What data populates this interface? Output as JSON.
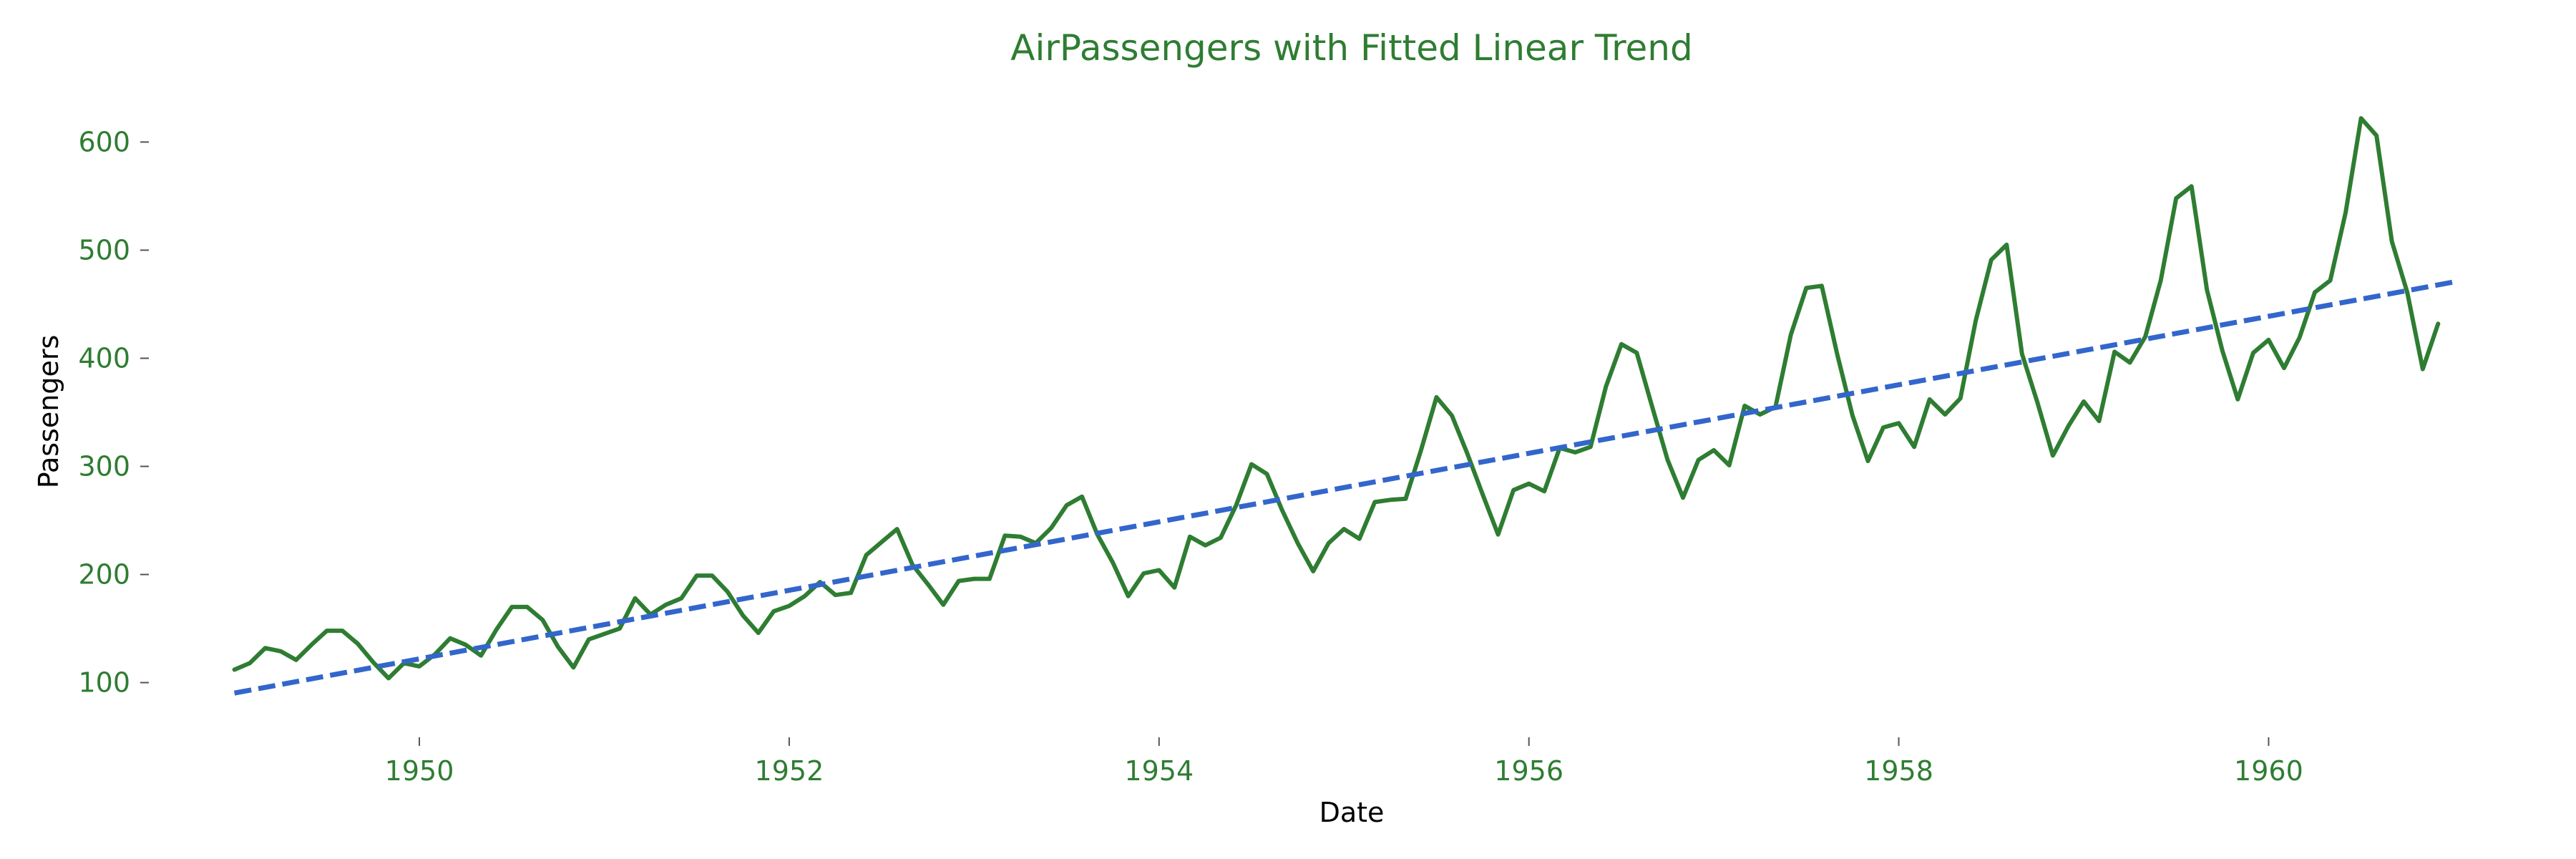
{
  "chart_data": {
    "type": "line",
    "title": "AirPassengers with Fitted Linear Trend",
    "xlabel": "Date",
    "ylabel": "Passengers",
    "xlim": [
      "1948-10-01",
      "1961-05-01"
    ],
    "ylim": [
      60,
      640
    ],
    "x_ticks": [
      "1950",
      "1952",
      "1954",
      "1956",
      "1958",
      "1960"
    ],
    "y_ticks": [
      100,
      200,
      300,
      400,
      500,
      600
    ],
    "grid": false,
    "legend": "none",
    "colors": {
      "text": "#2e7d32",
      "series": "#2e7d32",
      "trend": "#3366cc"
    },
    "series": [
      {
        "x_start": "1949-01",
        "x_interval": "monthly",
        "values": [
          112,
          118,
          132,
          129,
          121,
          135,
          148,
          148,
          136,
          119,
          104,
          118,
          115,
          126,
          141,
          135,
          125,
          149,
          170,
          170,
          158,
          133,
          114,
          140,
          145,
          150,
          178,
          163,
          172,
          178,
          199,
          199,
          184,
          162,
          146,
          166,
          171,
          180,
          193,
          181,
          183,
          218,
          230,
          242,
          209,
          191,
          172,
          194,
          196,
          196,
          236,
          235,
          229,
          243,
          264,
          272,
          237,
          211,
          180,
          201,
          204,
          188,
          235,
          227,
          234,
          264,
          302,
          293,
          259,
          229,
          203,
          229,
          242,
          233,
          267,
          269,
          270,
          315,
          364,
          347,
          312,
          274,
          237,
          278,
          284,
          277,
          317,
          313,
          318,
          374,
          413,
          405,
          355,
          306,
          271,
          306,
          315,
          301,
          356,
          348,
          355,
          422,
          465,
          467,
          404,
          347,
          305,
          336,
          340,
          318,
          362,
          348,
          363,
          435,
          491,
          505,
          404,
          359,
          310,
          337,
          360,
          342,
          406,
          396,
          420,
          472,
          548,
          559,
          463,
          407,
          362,
          405,
          417,
          391,
          419,
          461,
          472,
          535,
          622,
          606,
          508,
          461,
          390,
          432
        ]
      },
      {
        "style": "dashed",
        "x": [
          "1949-01",
          "1961-01"
        ],
        "values": [
          90.3,
          470.5
        ]
      }
    ]
  }
}
